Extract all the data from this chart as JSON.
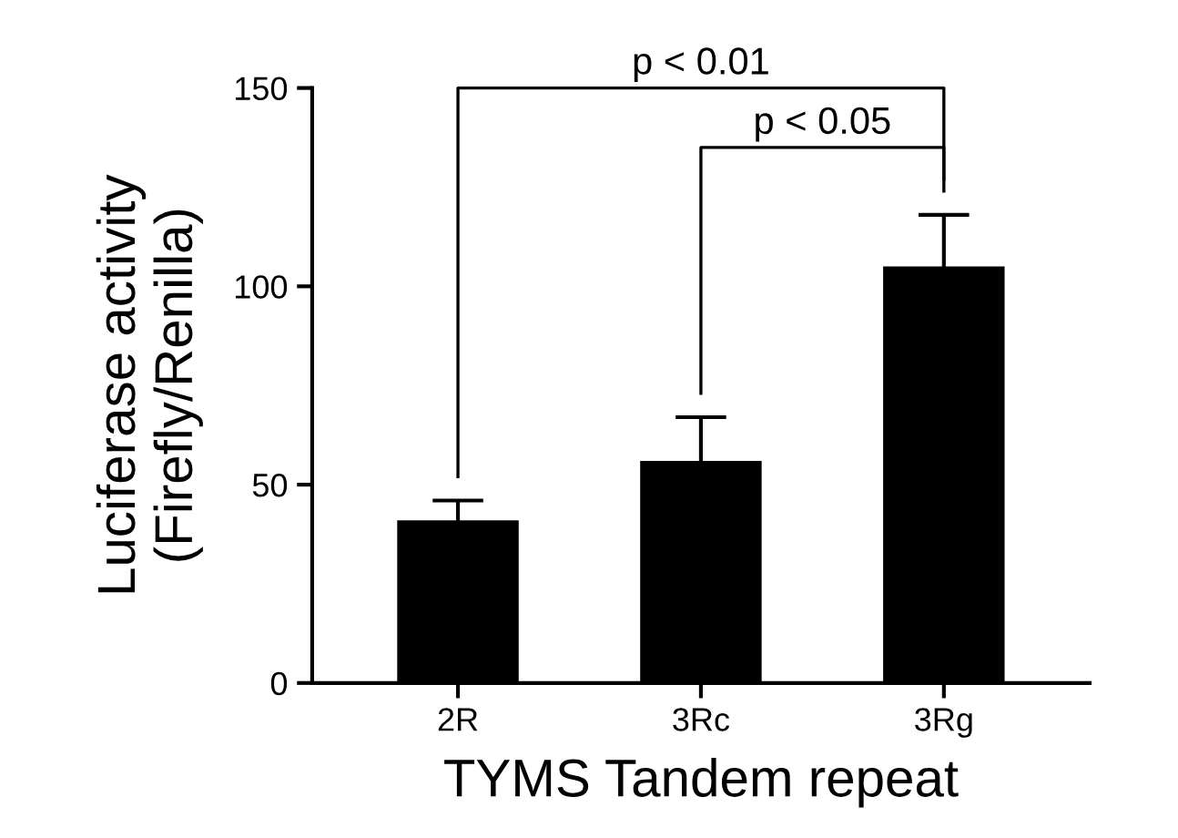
{
  "chart_data": {
    "type": "bar",
    "xlabel": "TYMS Tandem repeat",
    "ylabel": "Luciferase activity\n(Firefly/Renilla)",
    "categories": [
      "2R",
      "3Rc",
      "3Rg"
    ],
    "values": [
      41,
      56,
      105
    ],
    "errors": [
      5,
      11,
      13
    ],
    "color": "#000000",
    "ylim": [
      0,
      150
    ],
    "yticks": [
      0,
      50,
      100,
      150
    ],
    "grid": false,
    "annotations": [
      "p < 0.01",
      "p < 0.05"
    ]
  }
}
